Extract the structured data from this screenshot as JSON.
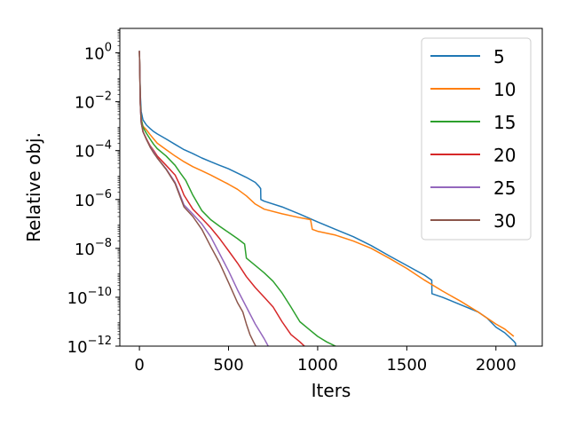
{
  "chart_data": {
    "type": "line",
    "title": "",
    "xlabel": "Iters",
    "ylabel": "Relative obj.",
    "yscale": "log",
    "xlim": [
      -110,
      2260
    ],
    "ylim": [
      1e-12,
      10.0
    ],
    "xticks": [
      0,
      500,
      1000,
      1500,
      2000
    ],
    "xtick_labels": [
      "0",
      "500",
      "1000",
      "1500",
      "2000"
    ],
    "yticks": [
      {
        "value": 1,
        "base": "10",
        "exp": "0"
      },
      {
        "value": 0.01,
        "base": "10",
        "exp": "−2"
      },
      {
        "value": 0.0001,
        "base": "10",
        "exp": "−4"
      },
      {
        "value": 1e-06,
        "base": "10",
        "exp": "−6"
      },
      {
        "value": 1e-08,
        "base": "10",
        "exp": "−8"
      },
      {
        "value": 1e-10,
        "base": "10",
        "exp": "−10"
      },
      {
        "value": 1e-12,
        "base": "10",
        "exp": "−12"
      }
    ],
    "grid": false,
    "legend_position": "top-right",
    "series": [
      {
        "name": "5",
        "color": "#1f77b4",
        "x": [
          0,
          2,
          5,
          10,
          20,
          40,
          60,
          80,
          100,
          150,
          200,
          250,
          300,
          350,
          400,
          450,
          500,
          550,
          600,
          650,
          670,
          680,
          681,
          700,
          800,
          900,
          1000,
          1100,
          1200,
          1300,
          1400,
          1500,
          1600,
          1640,
          1641,
          1700,
          1800,
          1900,
          1950,
          2000,
          2050,
          2100,
          2110,
          2111,
          2130,
          2140
        ],
        "y": [
          1.2,
          0.2,
          0.02,
          0.004,
          0.0018,
          0.0011,
          0.0008,
          0.0006,
          0.00048,
          0.0003,
          0.00018,
          0.00011,
          7.5e-05,
          5e-05,
          3.5e-05,
          2.5e-05,
          1.8e-05,
          1.2e-05,
          8e-06,
          5e-06,
          3.5e-06,
          2.8e-06,
          1e-06,
          8.5e-07,
          5e-07,
          2.5e-07,
          1.2e-07,
          6e-08,
          3e-08,
          1.3e-08,
          5e-09,
          2e-09,
          8e-10,
          5e-10,
          1.4e-10,
          1e-10,
          5e-11,
          2.5e-11,
          1.4e-11,
          6e-12,
          3.5e-12,
          1.6e-12,
          1.3e-12,
          4e-13,
          4e-13,
          4e-13
        ]
      },
      {
        "name": "10",
        "color": "#ff7f0e",
        "x": [
          0,
          2,
          5,
          10,
          20,
          40,
          60,
          80,
          100,
          150,
          200,
          250,
          300,
          350,
          400,
          450,
          500,
          550,
          600,
          650,
          700,
          800,
          900,
          960,
          970,
          1000,
          1100,
          1200,
          1300,
          1400,
          1500,
          1600,
          1700,
          1800,
          1900,
          2000,
          2050,
          2100
        ],
        "y": [
          1.2,
          0.2,
          0.01,
          0.002,
          0.001,
          0.0007,
          0.00045,
          0.0003,
          0.0002,
          0.00011,
          6e-05,
          3.5e-05,
          2.2e-05,
          1.5e-05,
          1e-05,
          6.5e-06,
          4.2e-06,
          2.6e-06,
          1.4e-06,
          6.5e-07,
          4e-07,
          2.6e-07,
          1.8e-07,
          1.5e-07,
          6e-08,
          5e-08,
          3.5e-08,
          2e-08,
          1e-08,
          4e-09,
          1.5e-09,
          5e-10,
          1.8e-10,
          7e-11,
          2.5e-11,
          8e-12,
          5e-12,
          2.5e-12
        ]
      },
      {
        "name": "15",
        "color": "#2ca02c",
        "x": [
          0,
          2,
          5,
          10,
          20,
          40,
          60,
          80,
          100,
          150,
          200,
          230,
          260,
          300,
          350,
          400,
          450,
          500,
          550,
          590,
          600,
          650,
          700,
          750,
          800,
          850,
          900,
          950,
          1000,
          1050,
          1100,
          1150
        ],
        "y": [
          1.2,
          0.2,
          0.01,
          0.002,
          0.0009,
          0.0005,
          0.0003,
          0.00018,
          0.00012,
          6e-05,
          2.5e-05,
          1.2e-05,
          6e-06,
          1.5e-06,
          3.5e-07,
          1.5e-07,
          8e-08,
          4.5e-08,
          2.5e-08,
          1.5e-08,
          4e-09,
          2e-09,
          1e-09,
          4.5e-10,
          1.5e-10,
          4e-11,
          1e-11,
          5e-12,
          2.5e-12,
          1.5e-12,
          1e-12,
          6e-13
        ]
      },
      {
        "name": "20",
        "color": "#d62728",
        "x": [
          0,
          2,
          5,
          10,
          20,
          40,
          60,
          80,
          100,
          150,
          200,
          230,
          250,
          300,
          350,
          400,
          450,
          500,
          550,
          600,
          650,
          700,
          750,
          800,
          850,
          900,
          940
        ],
        "y": [
          1.2,
          0.2,
          0.008,
          0.0015,
          0.0006,
          0.0003,
          0.00016,
          0.0001,
          6e-05,
          2.5e-05,
          1e-05,
          3.5e-06,
          1.5e-06,
          4e-07,
          1.7e-07,
          7e-08,
          2.5e-08,
          8e-09,
          2.5e-09,
          7e-10,
          2.5e-10,
          1e-10,
          4e-11,
          1e-11,
          3e-12,
          1.5e-12,
          8e-13
        ]
      },
      {
        "name": "25",
        "color": "#9467bd",
        "x": [
          0,
          2,
          5,
          10,
          20,
          40,
          60,
          80,
          100,
          150,
          200,
          250,
          300,
          350,
          400,
          450,
          500,
          550,
          600,
          650,
          700,
          730
        ],
        "y": [
          1.2,
          0.2,
          0.008,
          0.0014,
          0.0006,
          0.00028,
          0.00015,
          9e-05,
          5e-05,
          1.8e-05,
          5e-06,
          6e-07,
          2.5e-07,
          1e-07,
          3e-08,
          6e-09,
          1.2e-09,
          2e-10,
          4e-11,
          8e-12,
          2e-12,
          8e-13
        ]
      },
      {
        "name": "30",
        "color": "#8c564b",
        "x": [
          0,
          2,
          5,
          10,
          20,
          40,
          60,
          80,
          100,
          150,
          200,
          250,
          300,
          350,
          400,
          450,
          500,
          550,
          580,
          600,
          620,
          640,
          660
        ],
        "y": [
          1.2,
          0.2,
          0.008,
          0.0014,
          0.0006,
          0.00028,
          0.00014,
          8e-05,
          5e-05,
          1.7e-05,
          4.5e-06,
          5e-07,
          2e-07,
          6e-08,
          1.2e-08,
          2.5e-09,
          4e-10,
          6e-11,
          2.5e-11,
          8e-12,
          3e-12,
          1.5e-12,
          8e-13
        ]
      }
    ]
  }
}
